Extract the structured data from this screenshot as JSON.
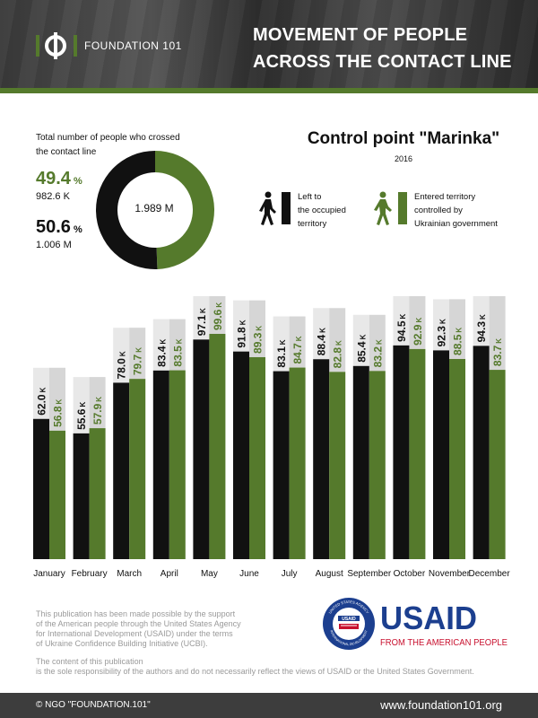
{
  "header": {
    "logo_text": "FOUNDATION 101",
    "title_line1": "MOVEMENT OF PEOPLE",
    "title_line2": "ACROSS THE CONTACT LINE"
  },
  "summary": {
    "label_line1": "Total number of people who crossed",
    "label_line2": "the contact line",
    "green_pct": "49.4",
    "green_abs": "982.6 K",
    "black_pct": "50.6",
    "black_abs": "1.006 M",
    "pct_sign": "%",
    "total": "1.989 M",
    "green_share": 49.4,
    "black_share": 50.6
  },
  "control_point": {
    "title": "Control point \"Marinka\"",
    "year": "2016"
  },
  "legend": {
    "left": {
      "line1": "Left to",
      "line2": "the occupied",
      "line3": "territory",
      "color": "#111111"
    },
    "entered": {
      "line1": "Entered territory",
      "line2": "controlled by",
      "line3": "Ukrainian government",
      "color": "#557a2c"
    }
  },
  "chart_data": {
    "type": "bar",
    "categories": [
      "January",
      "February",
      "March",
      "April",
      "May",
      "June",
      "July",
      "August",
      "September",
      "October",
      "November",
      "December"
    ],
    "series": [
      {
        "name": "Left to the occupied territory",
        "color": "#111111",
        "values": [
          62.0,
          55.6,
          78.0,
          83.4,
          97.1,
          91.8,
          83.1,
          88.4,
          85.4,
          94.5,
          92.3,
          94.3
        ]
      },
      {
        "name": "Entered territory controlled by Ukrainian government",
        "color": "#557a2c",
        "values": [
          56.8,
          57.9,
          79.7,
          83.5,
          99.6,
          89.3,
          84.7,
          82.8,
          83.2,
          92.9,
          88.5,
          83.7
        ]
      }
    ],
    "labels_black": [
      "62.0",
      "55.6",
      "78.0",
      "83.4",
      "97.1",
      "91.8",
      "83.1",
      "88.4",
      "85.4",
      "94.5",
      "92.3",
      "94.3"
    ],
    "labels_green": [
      "56.8",
      "57.9",
      "79.7",
      "83.5",
      "99.6",
      "89.3",
      "84.7",
      "82.8",
      "83.2",
      "92.9",
      "88.5",
      "83.7"
    ],
    "unit": "K",
    "ylim": [
      0,
      100
    ]
  },
  "disclaimer": {
    "p1_line1": "This publication has been made possible by the support",
    "p1_line2": "of the American people through the United States Agency",
    "p1_line3": "for International Development (USAID) under the terms",
    "p1_line4": "of Ukraine Confidence Building Initiative (UCBI).",
    "p2_line1": "The content of this publication",
    "p2_line2": "is the sole responsibility of the authors and do not necessarily reflect the views of USAID or the United States Government."
  },
  "usaid": {
    "wordmark": "USAID",
    "tagline": "FROM THE AMERICAN PEOPLE",
    "seal_text": "UNITED STATES AGENCY INTERNATIONAL DEVELOPMENT",
    "seal_inner": "USAID",
    "blue": "#1c3f8f",
    "red": "#c8102e"
  },
  "footer": {
    "copyright": "© NGO \"FOUNDATION.101\"",
    "website": "www.foundation101.org"
  }
}
